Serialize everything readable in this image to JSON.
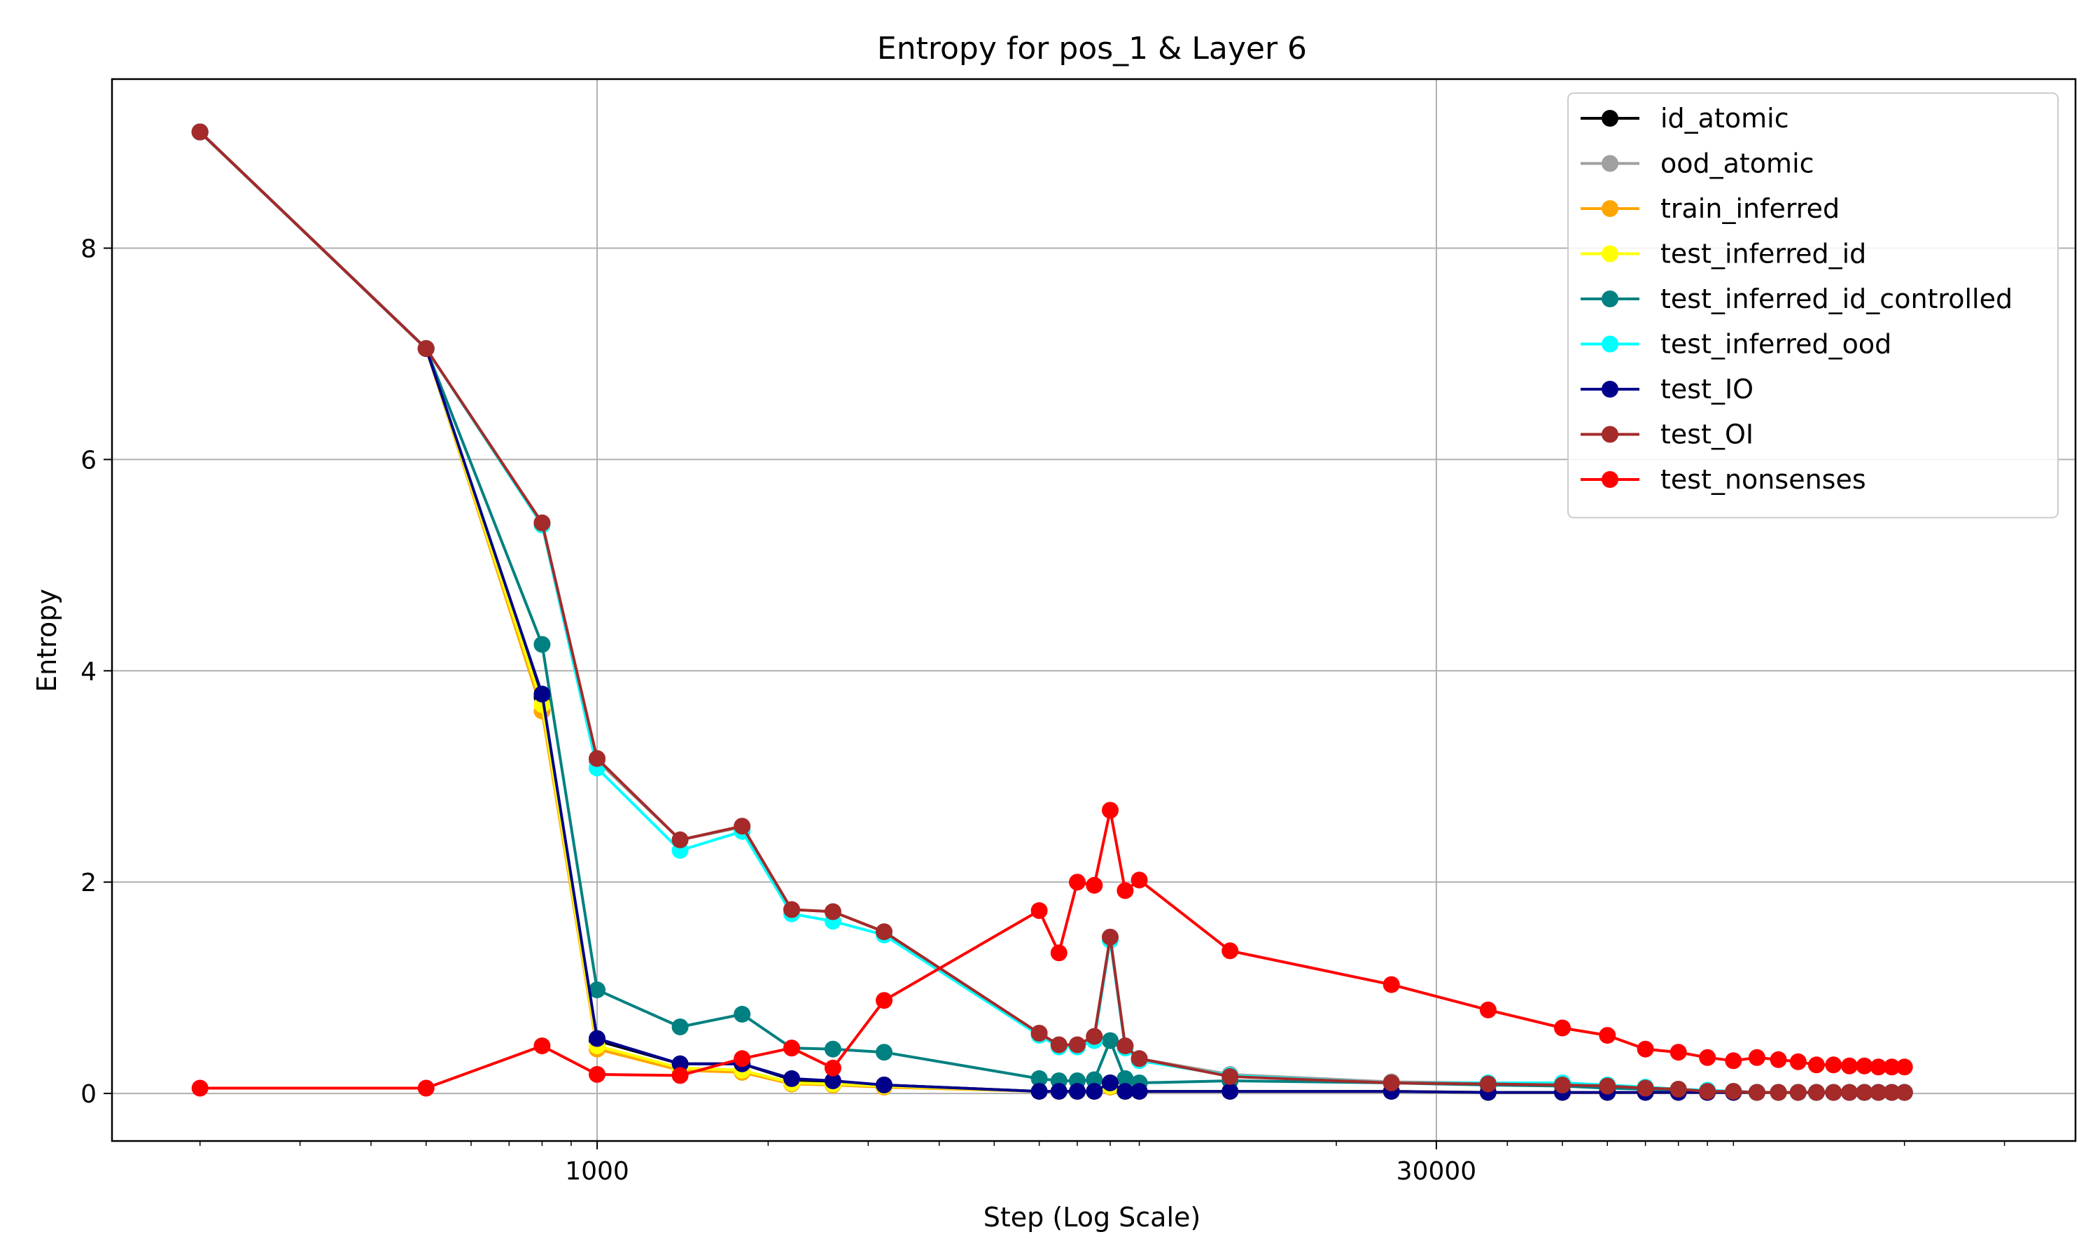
{
  "chart_data": {
    "type": "line",
    "title": "Entropy for pos_1 & Layer 6",
    "xlabel": "Step (Log Scale)",
    "ylabel": "Entropy",
    "xscale": "log",
    "xlim": [
      140,
      400000
    ],
    "ylim": [
      -0.45,
      9.6
    ],
    "x_ticks": [
      1000,
      30000
    ],
    "x_tick_labels": [
      "1000",
      "30000"
    ],
    "y_ticks": [
      0,
      2,
      4,
      6,
      8
    ],
    "y_tick_labels": [
      "0",
      "2",
      "4",
      "6",
      "8"
    ],
    "grid": true,
    "legend_position": "top-right",
    "series": [
      {
        "name": "id_atomic",
        "color": "#000000",
        "x": [
          200,
          500,
          800,
          1000,
          1400,
          1800,
          2200,
          2600,
          3200,
          6000,
          6500,
          7000,
          7500,
          8000,
          8500,
          9000,
          13000,
          25000,
          37000,
          50000,
          60000,
          70000,
          80000,
          90000,
          100000,
          110000,
          120000,
          130000,
          140000,
          150000,
          160000,
          170000,
          180000,
          190000,
          200000
        ],
        "y": [
          9.1,
          7.05,
          3.75,
          0.5,
          0.28,
          0.28,
          0.13,
          0.1,
          0.08,
          0.02,
          0.02,
          0.02,
          0.02,
          0.1,
          0.02,
          0.02,
          0.02,
          0.02,
          0.01,
          0.01,
          0.01,
          0.01,
          0.01,
          0.01,
          0.01,
          0.01,
          0.01,
          0.01,
          0.01,
          0.01,
          0.01,
          0.01,
          0.01,
          0.01,
          0.01
        ]
      },
      {
        "name": "ood_atomic",
        "color": "#a0a0a0",
        "x": [
          200,
          500,
          800,
          1000,
          1400,
          1800,
          2200,
          2600,
          3200,
          6000,
          6500,
          7000,
          7500,
          8000,
          8500,
          9000,
          13000,
          25000,
          37000,
          50000,
          60000,
          70000,
          80000,
          90000,
          100000,
          110000,
          120000,
          130000,
          140000,
          150000,
          160000,
          170000,
          180000,
          190000,
          200000
        ],
        "y": [
          9.1,
          7.05,
          5.4,
          3.15,
          2.4,
          2.52,
          1.74,
          1.72,
          1.53,
          0.57,
          0.46,
          0.46,
          0.54,
          1.48,
          0.45,
          0.33,
          0.18,
          0.11,
          0.1,
          0.1,
          0.08,
          0.06,
          0.04,
          0.03,
          0.02,
          0.01,
          0.01,
          0.01,
          0.01,
          0.01,
          0.01,
          0.01,
          0.01,
          0.01,
          0.01
        ]
      },
      {
        "name": "train_inferred",
        "color": "#ffa500",
        "x": [
          200,
          500,
          800,
          1000,
          1400,
          1800,
          2200,
          2600,
          3200,
          6000,
          6500,
          7000,
          7500,
          8000,
          8500,
          9000,
          13000,
          25000,
          37000,
          50000,
          60000,
          70000,
          80000,
          90000,
          100000,
          110000,
          120000,
          130000,
          140000,
          150000,
          160000,
          170000,
          180000,
          190000,
          200000
        ],
        "y": [
          9.1,
          7.05,
          3.62,
          0.42,
          0.22,
          0.2,
          0.09,
          0.08,
          0.06,
          0.02,
          0.02,
          0.02,
          0.02,
          0.06,
          0.02,
          0.02,
          0.02,
          0.02,
          0.01,
          0.01,
          0.01,
          0.01,
          0.01,
          0.01,
          0.01,
          0.01,
          0.01,
          0.01,
          0.01,
          0.01,
          0.01,
          0.01,
          0.01,
          0.01,
          0.01
        ]
      },
      {
        "name": "test_inferred_id",
        "color": "#ffff00",
        "x": [
          200,
          500,
          800,
          1000,
          1400,
          1800,
          2200,
          2600,
          3200,
          6000,
          6500,
          7000,
          7500,
          8000,
          8500,
          9000,
          13000,
          25000,
          37000,
          50000,
          60000,
          70000,
          80000,
          90000,
          100000,
          110000,
          120000,
          130000,
          140000,
          150000,
          160000,
          170000,
          180000,
          190000,
          200000
        ],
        "y": [
          9.1,
          7.05,
          3.68,
          0.45,
          0.24,
          0.22,
          0.1,
          0.09,
          0.07,
          0.02,
          0.02,
          0.02,
          0.02,
          0.07,
          0.02,
          0.02,
          0.02,
          0.02,
          0.01,
          0.01,
          0.01,
          0.01,
          0.01,
          0.01,
          0.01,
          0.01,
          0.01,
          0.01,
          0.01,
          0.01,
          0.01,
          0.01,
          0.01,
          0.01,
          0.01
        ]
      },
      {
        "name": "test_inferred_id_controlled",
        "color": "#008080",
        "x": [
          200,
          500,
          800,
          1000,
          1400,
          1800,
          2200,
          2600,
          3200,
          6000,
          6500,
          7000,
          7500,
          8000,
          8500,
          9000,
          13000,
          25000,
          37000,
          50000,
          60000,
          70000,
          80000,
          90000,
          100000,
          110000,
          120000,
          130000,
          140000,
          150000,
          160000,
          170000,
          180000,
          190000,
          200000
        ],
        "y": [
          9.1,
          7.05,
          4.25,
          0.98,
          0.63,
          0.75,
          0.43,
          0.42,
          0.39,
          0.14,
          0.12,
          0.12,
          0.13,
          0.5,
          0.14,
          0.1,
          0.12,
          0.1,
          0.08,
          0.07,
          0.05,
          0.04,
          0.03,
          0.02,
          0.02,
          0.01,
          0.01,
          0.01,
          0.01,
          0.01,
          0.01,
          0.01,
          0.01,
          0.01,
          0.01
        ]
      },
      {
        "name": "test_inferred_ood",
        "color": "#00ffff",
        "x": [
          200,
          500,
          800,
          1000,
          1400,
          1800,
          2200,
          2600,
          3200,
          6000,
          6500,
          7000,
          7500,
          8000,
          8500,
          9000,
          13000,
          25000,
          37000,
          50000,
          60000,
          70000,
          80000,
          90000,
          100000,
          110000,
          120000,
          130000,
          140000,
          150000,
          160000,
          170000,
          180000,
          190000,
          200000
        ],
        "y": [
          9.1,
          7.05,
          5.38,
          3.08,
          2.3,
          2.48,
          1.7,
          1.63,
          1.5,
          0.55,
          0.44,
          0.44,
          0.5,
          1.45,
          0.43,
          0.31,
          0.17,
          0.1,
          0.1,
          0.1,
          0.08,
          0.06,
          0.04,
          0.03,
          0.02,
          0.01,
          0.01,
          0.01,
          0.01,
          0.01,
          0.01,
          0.01,
          0.01,
          0.01,
          0.01
        ]
      },
      {
        "name": "test_IO",
        "color": "#00008b",
        "x": [
          200,
          500,
          800,
          1000,
          1400,
          1800,
          2200,
          2600,
          3200,
          6000,
          6500,
          7000,
          7500,
          8000,
          8500,
          9000,
          13000,
          25000,
          37000,
          50000,
          60000,
          70000,
          80000,
          90000,
          100000,
          110000,
          120000,
          130000,
          140000,
          150000,
          160000,
          170000,
          180000,
          190000,
          200000
        ],
        "y": [
          9.1,
          7.05,
          3.78,
          0.52,
          0.28,
          0.28,
          0.14,
          0.12,
          0.08,
          0.02,
          0.02,
          0.02,
          0.02,
          0.1,
          0.02,
          0.02,
          0.02,
          0.02,
          0.01,
          0.01,
          0.01,
          0.01,
          0.01,
          0.01,
          0.01,
          0.01,
          0.01,
          0.01,
          0.01,
          0.01,
          0.01,
          0.01,
          0.01,
          0.01,
          0.01
        ]
      },
      {
        "name": "test_OI",
        "color": "#a52a2a",
        "x": [
          200,
          500,
          800,
          1000,
          1400,
          1800,
          2200,
          2600,
          3200,
          6000,
          6500,
          7000,
          7500,
          8000,
          8500,
          9000,
          13000,
          25000,
          37000,
          50000,
          60000,
          70000,
          80000,
          90000,
          100000,
          110000,
          120000,
          130000,
          140000,
          150000,
          160000,
          170000,
          180000,
          190000,
          200000
        ],
        "y": [
          9.1,
          7.05,
          5.4,
          3.17,
          2.4,
          2.53,
          1.74,
          1.72,
          1.53,
          0.57,
          0.46,
          0.46,
          0.54,
          1.48,
          0.45,
          0.33,
          0.16,
          0.1,
          0.09,
          0.08,
          0.07,
          0.05,
          0.04,
          0.02,
          0.02,
          0.01,
          0.01,
          0.01,
          0.01,
          0.01,
          0.01,
          0.01,
          0.01,
          0.01,
          0.01
        ]
      },
      {
        "name": "test_nonsenses",
        "color": "#ff0000",
        "x": [
          200,
          500,
          800,
          1000,
          1400,
          1800,
          2200,
          2600,
          3200,
          6000,
          6500,
          7000,
          7500,
          8000,
          8500,
          9000,
          13000,
          25000,
          37000,
          50000,
          60000,
          70000,
          80000,
          90000,
          100000,
          110000,
          120000,
          130000,
          140000,
          150000,
          160000,
          170000,
          180000,
          190000,
          200000
        ],
        "y": [
          0.05,
          0.05,
          0.45,
          0.18,
          0.17,
          0.33,
          0.43,
          0.24,
          0.88,
          1.73,
          1.33,
          2.0,
          1.97,
          2.68,
          1.92,
          2.02,
          1.35,
          1.03,
          0.79,
          0.62,
          0.55,
          0.42,
          0.39,
          0.34,
          0.31,
          0.34,
          0.32,
          0.3,
          0.27,
          0.27,
          0.26,
          0.26,
          0.25,
          0.25,
          0.25
        ]
      }
    ]
  }
}
